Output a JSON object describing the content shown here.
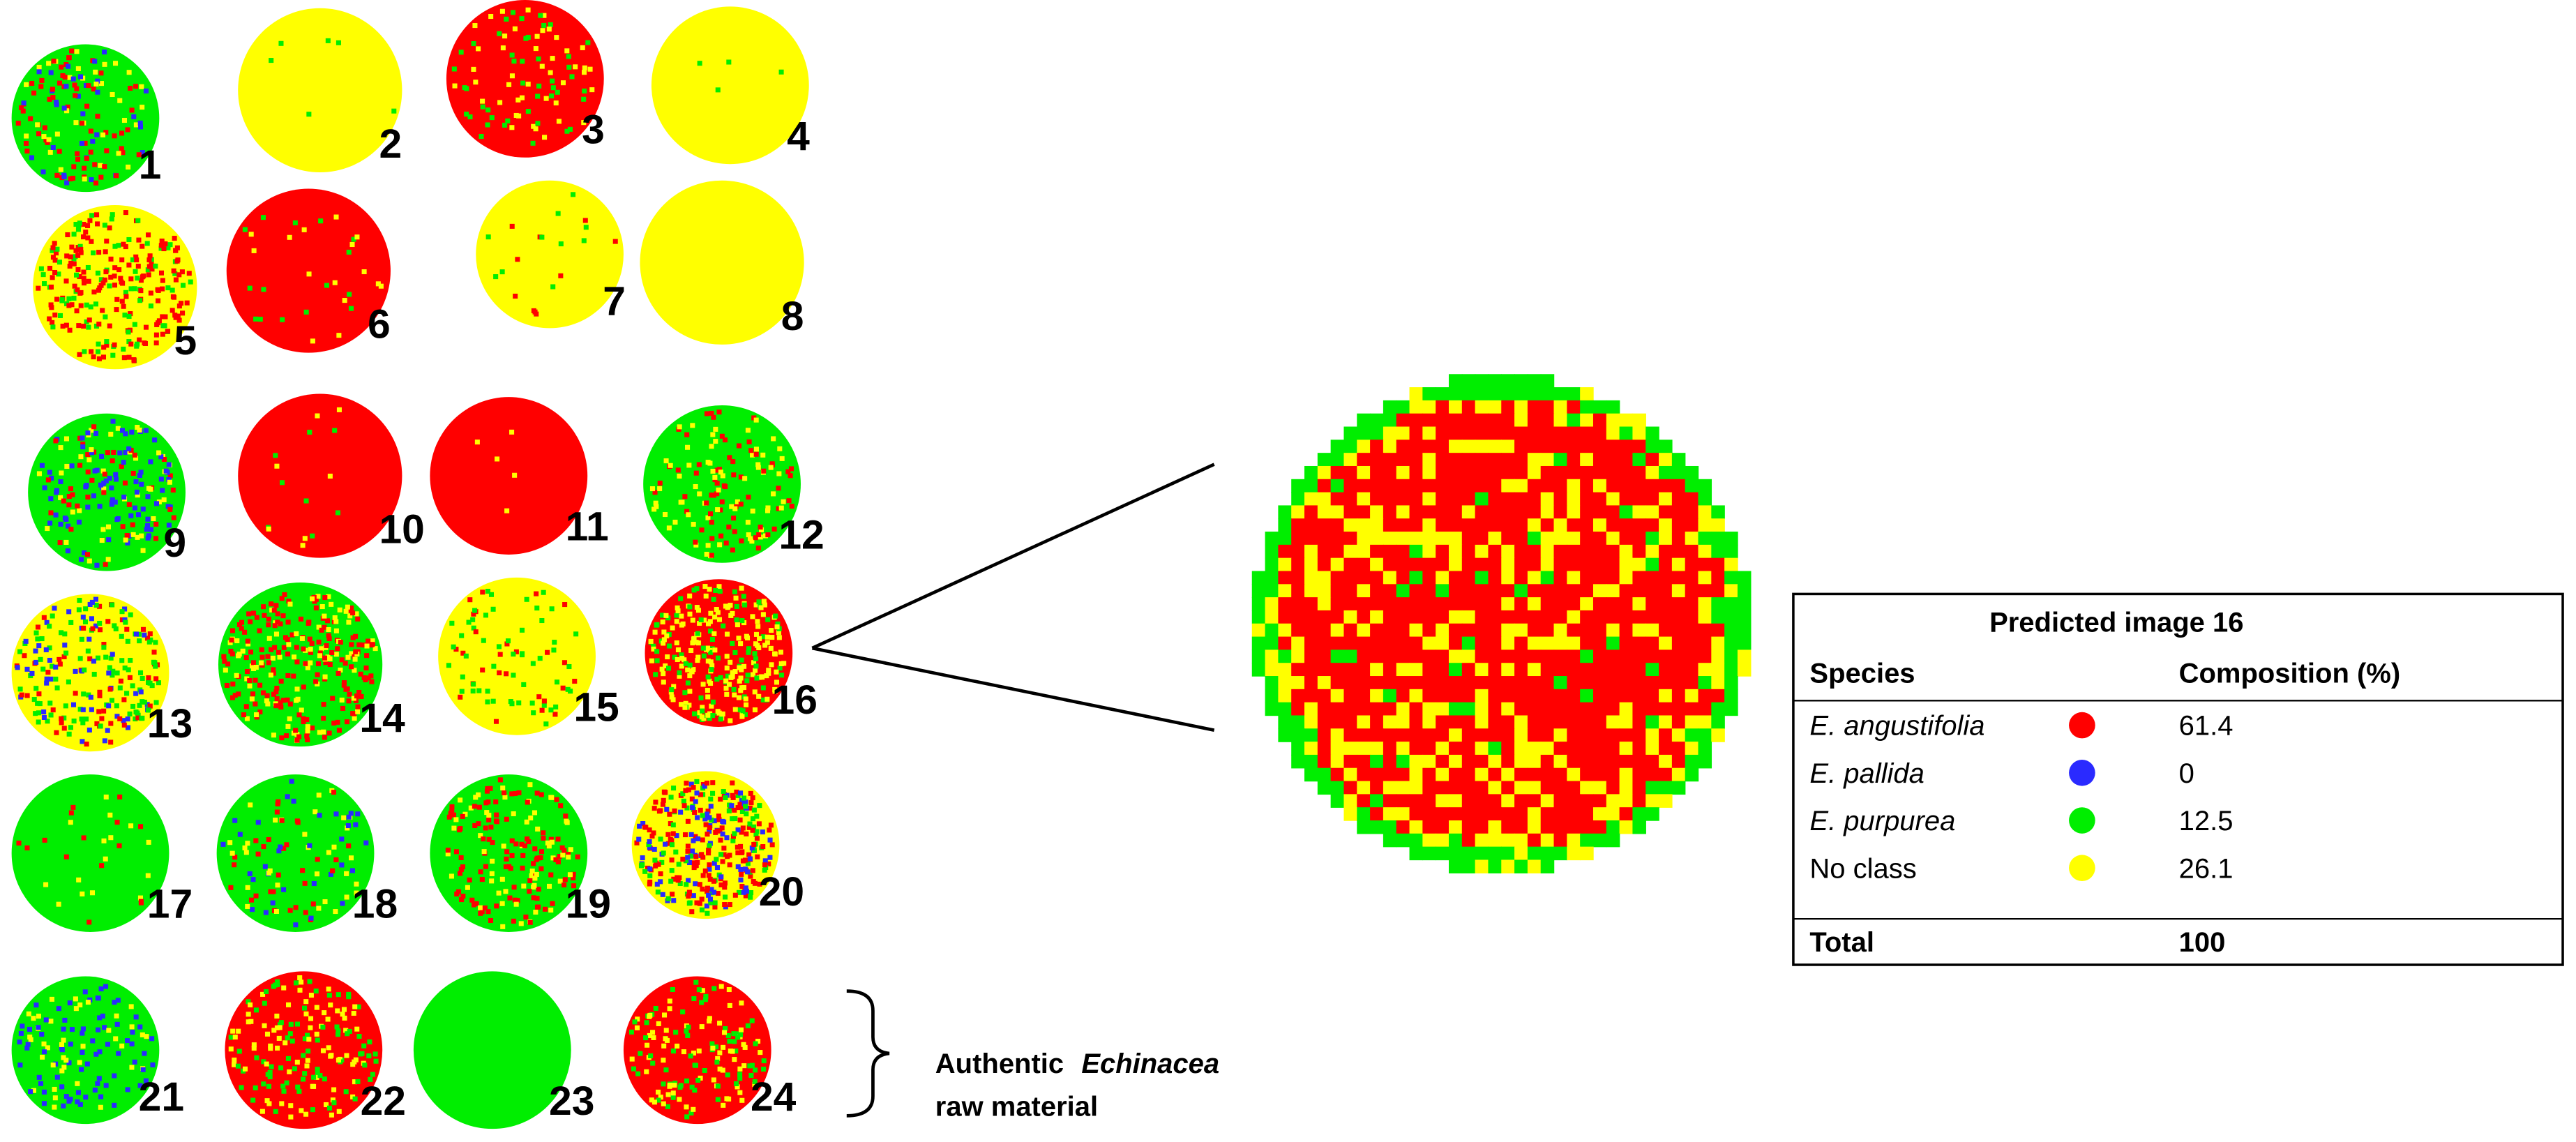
{
  "images": {
    "labels": [
      "1",
      "2",
      "3",
      "4",
      "5",
      "6",
      "7",
      "8",
      "9",
      "10",
      "11",
      "12",
      "13",
      "14",
      "15",
      "16",
      "17",
      "18",
      "19",
      "20",
      "21",
      "22",
      "23",
      "24"
    ]
  },
  "annotation": {
    "line1": [
      "Authentic",
      "Echinacea"
    ],
    "line2": "raw material"
  },
  "table": {
    "title": "Predicted image 16",
    "header": [
      "Species",
      "Composition (%)"
    ],
    "rows": [
      {
        "species": "E. angustifolia",
        "color": "#ff0000",
        "composition": 61.4
      },
      {
        "species": "E. pallida",
        "color": "#2a2aff",
        "composition": 0
      },
      {
        "species": "E. purpurea",
        "color": "#00ee00",
        "composition": 12.5
      },
      {
        "species": "No class",
        "color": "#ffff00",
        "composition": 26.1
      }
    ],
    "total": {
      "label": "Total",
      "value": 100
    }
  }
}
